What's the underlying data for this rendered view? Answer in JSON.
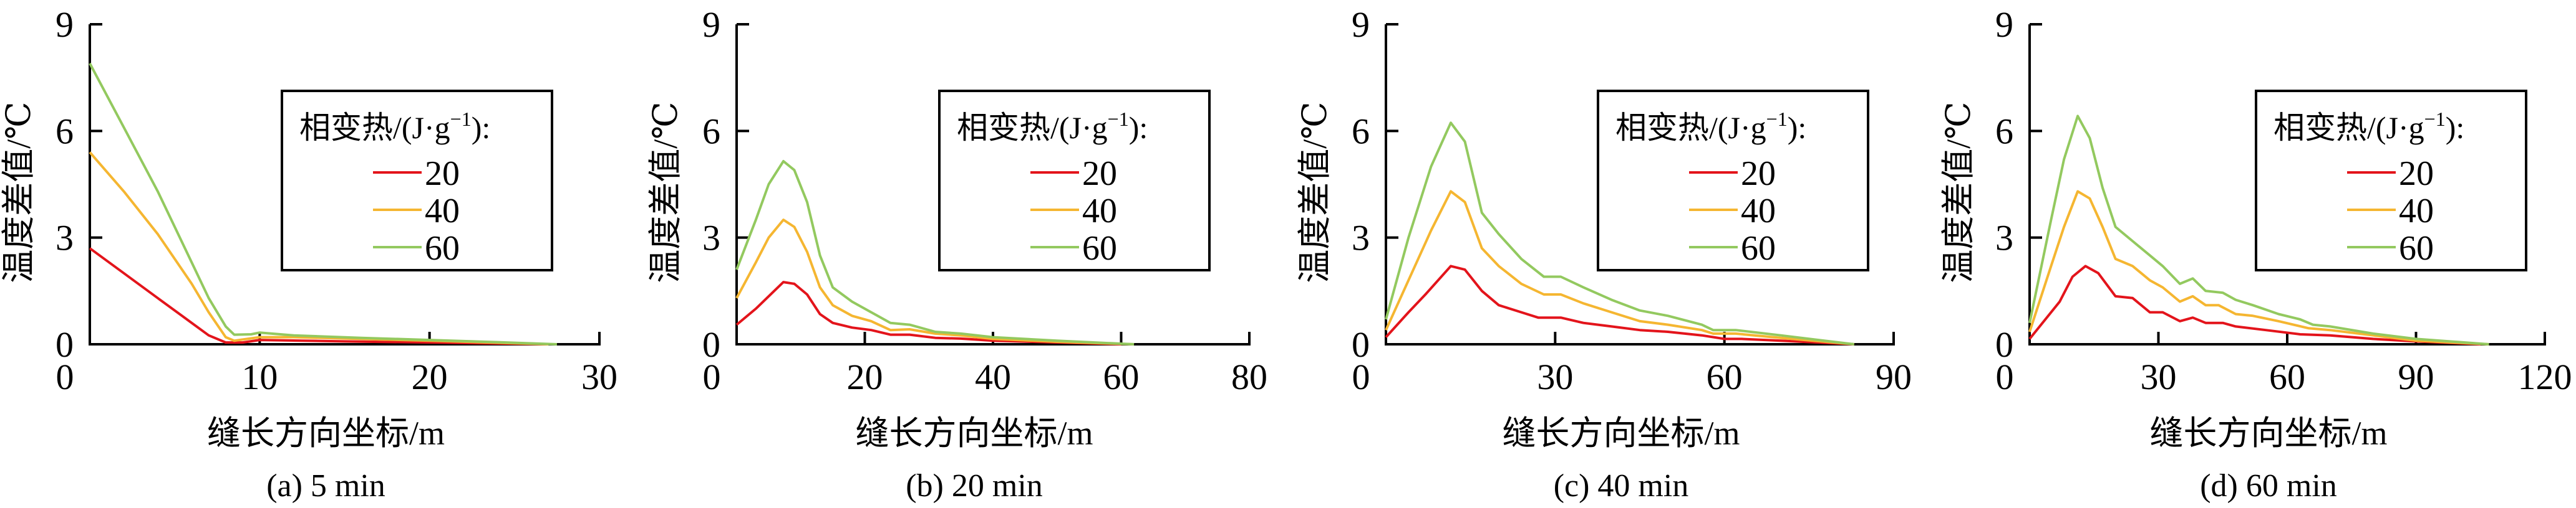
{
  "colors": {
    "20": "#e3141b",
    "40": "#f5b631",
    "60": "#93c95f",
    "axis": "#000000"
  },
  "legend_title": {
    "main": "相变热/(J·g",
    "sup": "−1",
    "tail": "):"
  },
  "chart_data": [
    {
      "type": "line",
      "caption": "(a) 5 min",
      "xlabel": "缝长方向坐标/m",
      "ylabel": "温度差值/℃",
      "xlim": [
        0,
        30
      ],
      "ylim": [
        0,
        9
      ],
      "xticks": [
        0,
        10,
        20,
        30
      ],
      "yticks": [
        0,
        3,
        6,
        9
      ],
      "grid": false,
      "legend_placement": "upper-right",
      "series": [
        {
          "name": "20",
          "x": [
            0,
            2,
            4,
            6,
            7,
            8,
            9,
            10,
            15,
            20,
            27
          ],
          "y": [
            2.7,
            2.0,
            1.3,
            0.6,
            0.25,
            0.05,
            0.05,
            0.12,
            0.08,
            0.05,
            0
          ]
        },
        {
          "name": "40",
          "x": [
            0,
            2,
            4,
            6,
            7,
            8,
            8.5,
            10,
            12,
            16,
            20,
            27
          ],
          "y": [
            5.4,
            4.3,
            3.1,
            1.7,
            0.9,
            0.2,
            0.1,
            0.2,
            0.2,
            0.15,
            0.1,
            0
          ]
        },
        {
          "name": "60",
          "x": [
            0,
            2,
            4,
            6,
            7,
            8,
            8.5,
            9.5,
            10,
            12,
            16,
            20,
            24,
            27.5
          ],
          "y": [
            7.9,
            6.1,
            4.3,
            2.3,
            1.3,
            0.5,
            0.27,
            0.28,
            0.33,
            0.25,
            0.18,
            0.12,
            0.06,
            0
          ]
        }
      ]
    },
    {
      "type": "line",
      "caption": "(b) 20 min",
      "xlabel": "缝长方向坐标/m",
      "ylabel": "温度差值/℃",
      "xlim": [
        0,
        80
      ],
      "ylim": [
        0,
        9
      ],
      "xticks": [
        0,
        20,
        40,
        60,
        80
      ],
      "yticks": [
        0,
        3,
        6,
        9
      ],
      "grid": false,
      "legend_placement": "upper-right",
      "series": [
        {
          "name": "20",
          "x": [
            0,
            3,
            5,
            7.3,
            9,
            11,
            13,
            15,
            18,
            21,
            24,
            27,
            31,
            35,
            40,
            50,
            60
          ],
          "y": [
            0.55,
            1.0,
            1.35,
            1.75,
            1.7,
            1.4,
            0.85,
            0.6,
            0.47,
            0.4,
            0.27,
            0.27,
            0.18,
            0.16,
            0.1,
            0.05,
            0
          ]
        },
        {
          "name": "40",
          "x": [
            0,
            3,
            5,
            7.3,
            9,
            11,
            13,
            15,
            18,
            21,
            24,
            27,
            31,
            35,
            40,
            50,
            62
          ],
          "y": [
            1.3,
            2.3,
            3.0,
            3.5,
            3.3,
            2.6,
            1.6,
            1.1,
            0.8,
            0.65,
            0.4,
            0.42,
            0.3,
            0.25,
            0.15,
            0.07,
            0
          ]
        },
        {
          "name": "60",
          "x": [
            0,
            3,
            5,
            7.3,
            9,
            11,
            13,
            15,
            18,
            21,
            24,
            27,
            31,
            35,
            40,
            50,
            62
          ],
          "y": [
            2.1,
            3.5,
            4.5,
            5.15,
            4.9,
            4.0,
            2.5,
            1.6,
            1.2,
            0.9,
            0.6,
            0.55,
            0.35,
            0.3,
            0.2,
            0.1,
            0
          ]
        }
      ]
    },
    {
      "type": "line",
      "caption": "(c) 40 min",
      "xlabel": "缝长方向坐标/m",
      "ylabel": "温度差值/℃",
      "xlim": [
        0,
        90
      ],
      "ylim": [
        0,
        9
      ],
      "xticks": [
        0,
        30,
        60,
        90
      ],
      "yticks": [
        0,
        3,
        6,
        9
      ],
      "grid": false,
      "legend_placement": "upper-right",
      "series": [
        {
          "name": "20",
          "x": [
            0,
            4,
            7,
            11.5,
            14,
            17,
            20,
            24,
            27,
            31,
            35,
            40,
            45,
            50,
            56,
            60,
            63,
            70,
            83
          ],
          "y": [
            0.2,
            0.9,
            1.4,
            2.2,
            2.1,
            1.5,
            1.1,
            0.9,
            0.75,
            0.75,
            0.6,
            0.5,
            0.4,
            0.35,
            0.25,
            0.15,
            0.15,
            0.1,
            0
          ]
        },
        {
          "name": "40",
          "x": [
            0,
            4,
            8,
            11.5,
            14,
            17,
            20,
            24,
            28,
            31,
            35,
            40,
            45,
            50,
            56,
            58,
            62,
            70,
            83
          ],
          "y": [
            0.4,
            1.8,
            3.2,
            4.3,
            4.0,
            2.7,
            2.2,
            1.7,
            1.4,
            1.4,
            1.15,
            0.9,
            0.65,
            0.55,
            0.4,
            0.3,
            0.3,
            0.18,
            0
          ]
        },
        {
          "name": "60",
          "x": [
            0,
            4,
            8,
            11.5,
            14,
            17,
            20,
            24,
            28,
            31,
            35,
            40,
            45,
            50,
            56,
            58,
            62,
            70,
            83
          ],
          "y": [
            0.7,
            3.0,
            5.0,
            6.23,
            5.7,
            3.7,
            3.1,
            2.4,
            1.9,
            1.9,
            1.6,
            1.25,
            0.95,
            0.8,
            0.55,
            0.4,
            0.4,
            0.25,
            0
          ]
        }
      ]
    },
    {
      "type": "line",
      "caption": "(d) 60 min",
      "xlabel": "缝长方向坐标/m",
      "ylabel": "温度差值/℃",
      "xlim": [
        0,
        120
      ],
      "ylim": [
        0,
        9
      ],
      "xticks": [
        0,
        30,
        60,
        90,
        120
      ],
      "yticks": [
        0,
        3,
        6,
        9
      ],
      "grid": false,
      "legend_placement": "upper-right",
      "series": [
        {
          "name": "20",
          "x": [
            0,
            7,
            10,
            13,
            16,
            20,
            24,
            28,
            31,
            35,
            38,
            41,
            45,
            48,
            55,
            63,
            70,
            80,
            90,
            105
          ],
          "y": [
            0.15,
            1.2,
            1.9,
            2.2,
            2.0,
            1.35,
            1.3,
            0.9,
            0.9,
            0.65,
            0.75,
            0.6,
            0.6,
            0.5,
            0.4,
            0.28,
            0.25,
            0.15,
            0.08,
            0
          ]
        },
        {
          "name": "40",
          "x": [
            0,
            5,
            8,
            11.2,
            14,
            17,
            20,
            24,
            28,
            31,
            35,
            38,
            41,
            44,
            48,
            52,
            58,
            65,
            70,
            80,
            90,
            107
          ],
          "y": [
            0.35,
            2.2,
            3.3,
            4.3,
            4.1,
            3.3,
            2.4,
            2.2,
            1.8,
            1.6,
            1.2,
            1.35,
            1.1,
            1.1,
            0.85,
            0.8,
            0.65,
            0.45,
            0.4,
            0.25,
            0.1,
            0
          ]
        },
        {
          "name": "60",
          "x": [
            0,
            5,
            8,
            11.2,
            14,
            17,
            20,
            24,
            28,
            31,
            35,
            38,
            41,
            45,
            48,
            52,
            58,
            63,
            66,
            70,
            80,
            90,
            107
          ],
          "y": [
            0.6,
            3.5,
            5.2,
            6.42,
            5.8,
            4.4,
            3.3,
            2.9,
            2.5,
            2.2,
            1.7,
            1.85,
            1.5,
            1.45,
            1.25,
            1.1,
            0.85,
            0.7,
            0.55,
            0.5,
            0.3,
            0.15,
            0
          ]
        }
      ]
    }
  ]
}
